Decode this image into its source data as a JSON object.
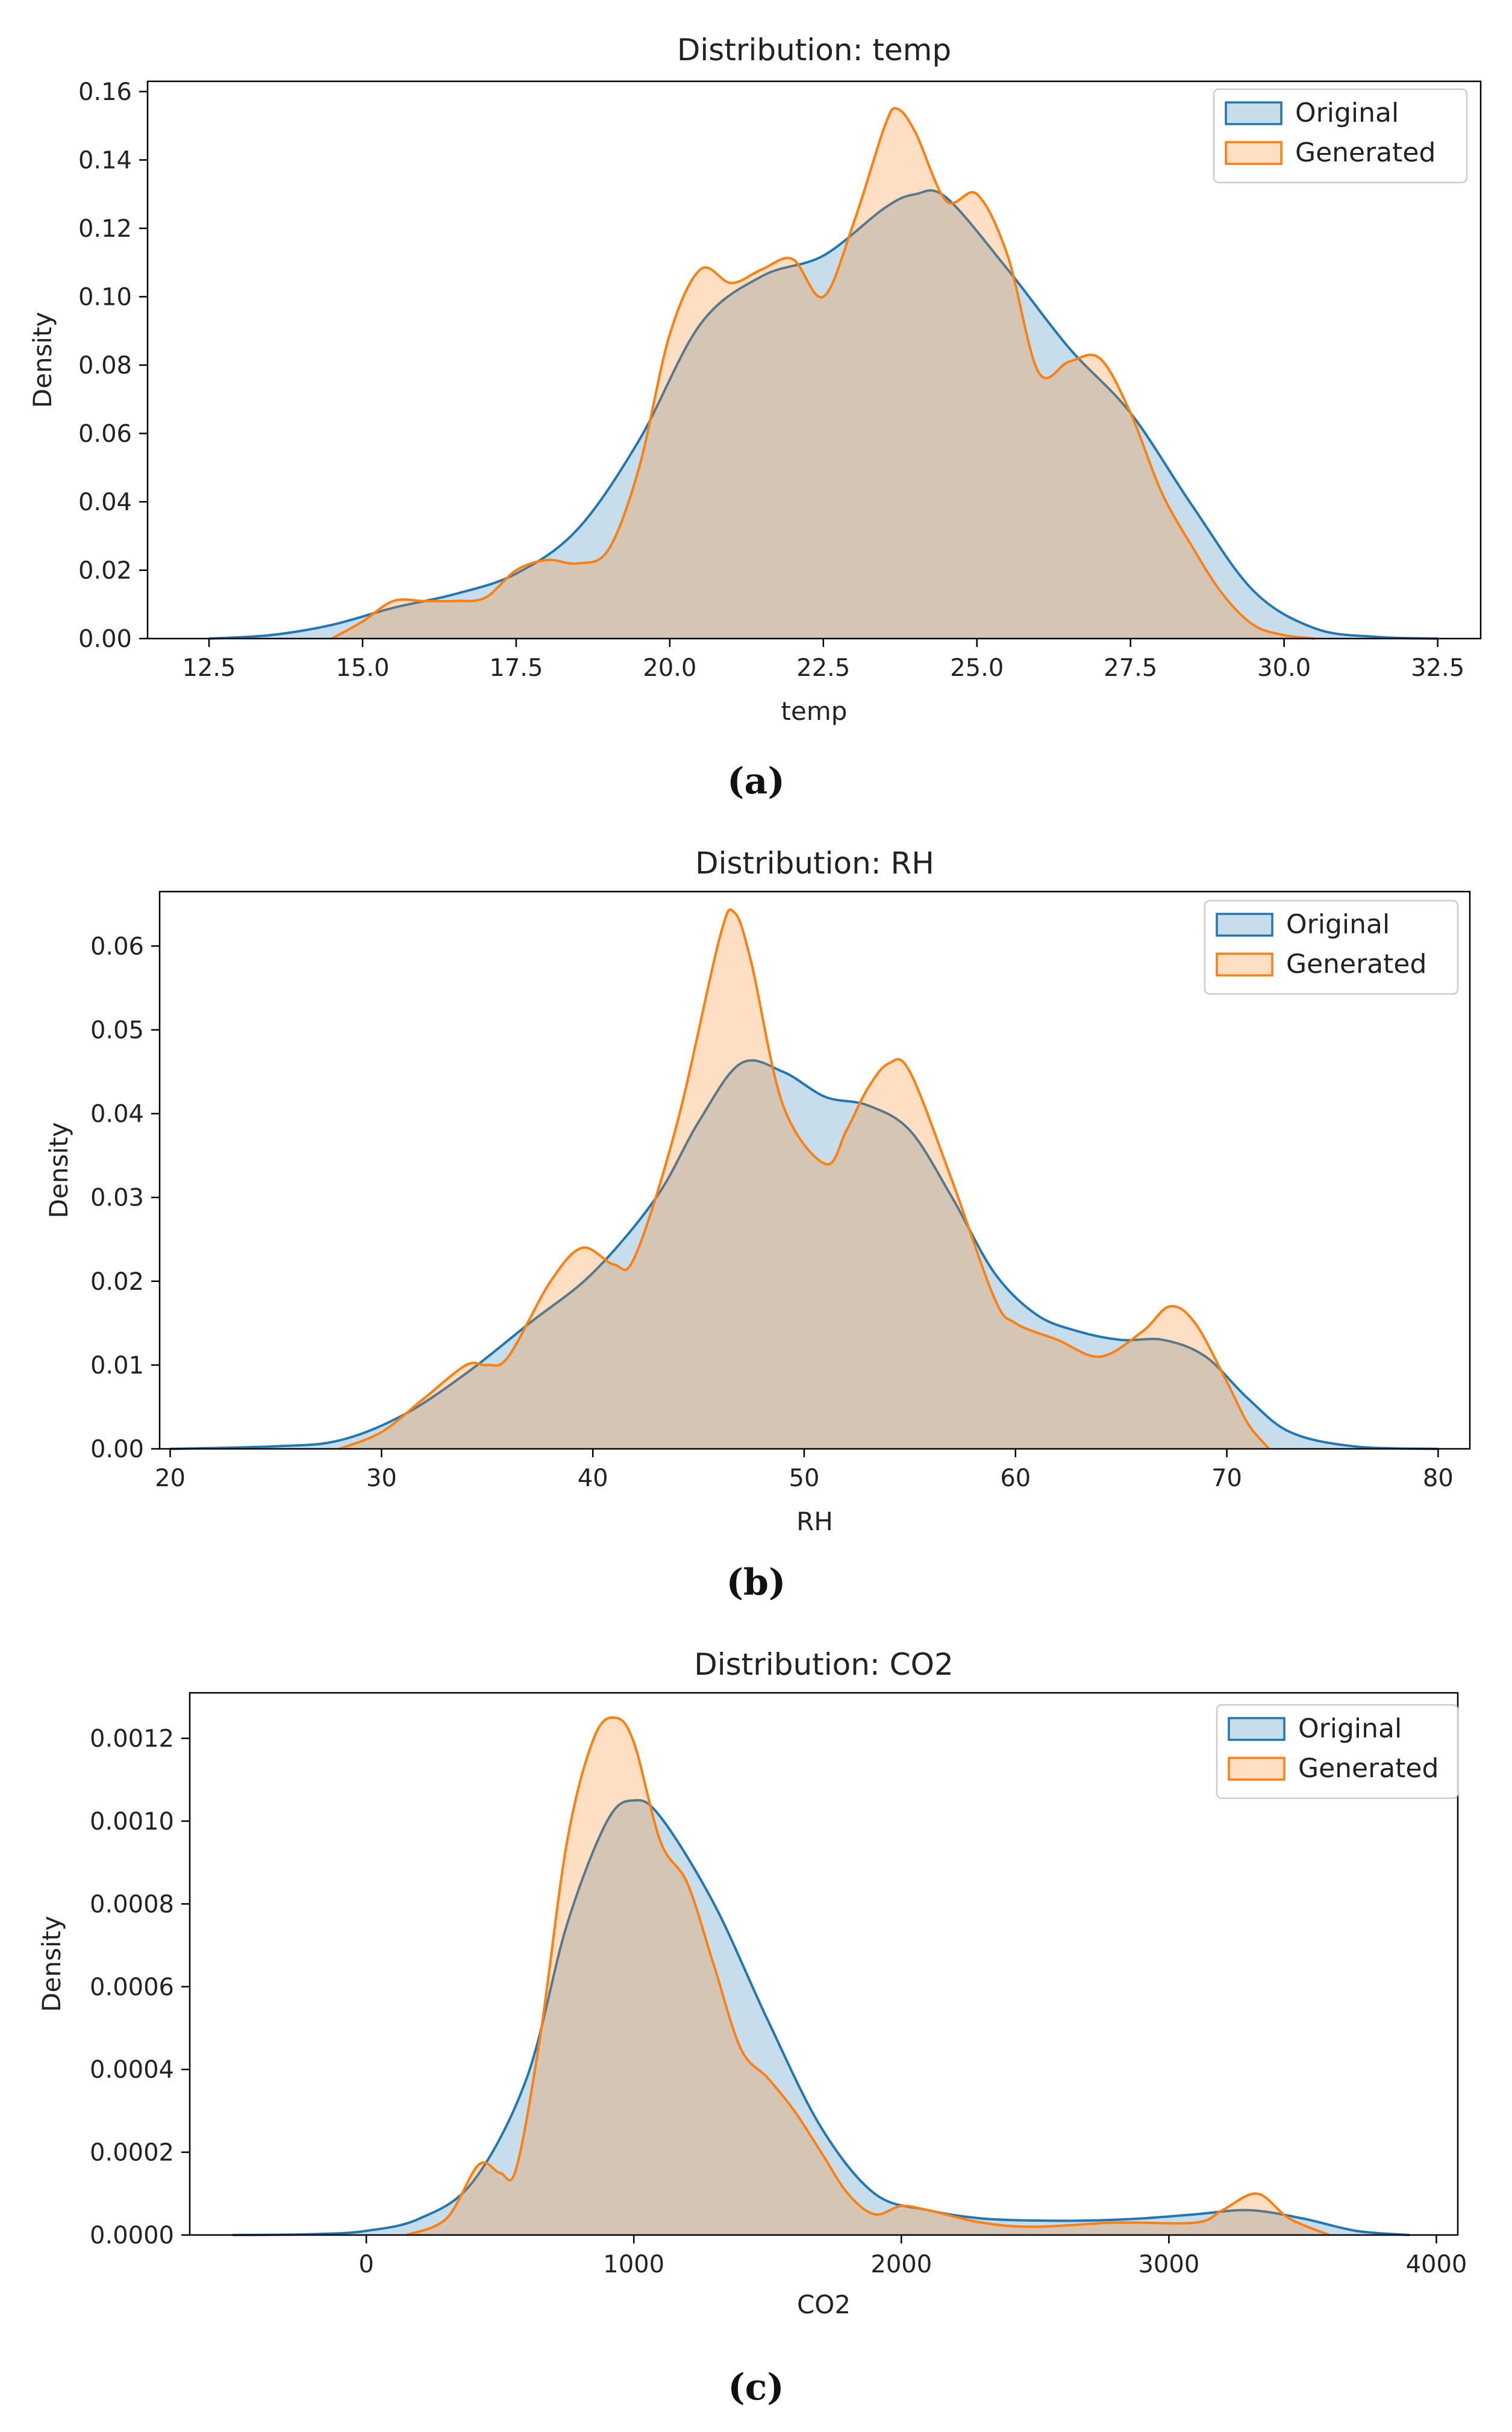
{
  "captions": [
    "(a)",
    "(b)",
    "(c)"
  ],
  "chart_data": [
    {
      "type": "area",
      "title": "Distribution: temp",
      "xlabel": "temp",
      "ylabel": "Density",
      "xlim": [
        11.5,
        33.2
      ],
      "ylim": [
        0,
        0.163
      ],
      "xticks": [
        12.5,
        15.0,
        17.5,
        20.0,
        22.5,
        25.0,
        27.5,
        30.0,
        32.5
      ],
      "xtick_labels": [
        "12.5",
        "15.0",
        "17.5",
        "20.0",
        "22.5",
        "25.0",
        "27.5",
        "30.0",
        "32.5"
      ],
      "yticks": [
        0,
        0.02,
        0.04,
        0.06,
        0.08,
        0.1,
        0.12,
        0.14,
        0.16
      ],
      "ytick_labels": [
        "0.00",
        "0.02",
        "0.04",
        "0.06",
        "0.08",
        "0.10",
        "0.12",
        "0.14",
        "0.16"
      ],
      "legend_position": "top-right",
      "series": [
        {
          "name": "Original",
          "color": "#1f77b4",
          "x": [
            12.5,
            13.5,
            14.5,
            15.5,
            16.5,
            17.5,
            18.5,
            19.5,
            20.5,
            21.5,
            22.5,
            23.5,
            24.0,
            24.5,
            25.5,
            26.5,
            27.5,
            28.5,
            29.5,
            30.5,
            31.5,
            32.5
          ],
          "y": [
            0.0,
            0.001,
            0.004,
            0.009,
            0.013,
            0.019,
            0.032,
            0.058,
            0.092,
            0.106,
            0.112,
            0.126,
            0.13,
            0.129,
            0.108,
            0.085,
            0.066,
            0.039,
            0.014,
            0.003,
            0.0005,
            0.0
          ]
        },
        {
          "name": "Generated",
          "color": "#ff7f0e",
          "x": [
            14.5,
            15.0,
            15.5,
            16.0,
            16.5,
            17.0,
            17.5,
            18.0,
            18.5,
            19.0,
            19.5,
            20.0,
            20.5,
            21.0,
            21.5,
            22.0,
            22.5,
            23.0,
            23.5,
            23.7,
            24.0,
            24.5,
            25.0,
            25.5,
            26.0,
            26.5,
            27.0,
            27.5,
            28.0,
            28.5,
            29.0,
            29.5,
            30.0,
            30.5
          ],
          "y": [
            0.0,
            0.005,
            0.011,
            0.011,
            0.011,
            0.012,
            0.02,
            0.023,
            0.022,
            0.026,
            0.05,
            0.089,
            0.108,
            0.104,
            0.108,
            0.111,
            0.1,
            0.122,
            0.15,
            0.155,
            0.148,
            0.128,
            0.13,
            0.112,
            0.078,
            0.081,
            0.082,
            0.066,
            0.043,
            0.027,
            0.013,
            0.004,
            0.001,
            0.0
          ]
        }
      ]
    },
    {
      "type": "area",
      "title": "Distribution: RH",
      "xlabel": "RH",
      "ylabel": "Density",
      "xlim": [
        19.5,
        81.5
      ],
      "ylim": [
        0,
        0.0665
      ],
      "xticks": [
        20,
        30,
        40,
        50,
        60,
        70,
        80
      ],
      "xtick_labels": [
        "20",
        "30",
        "40",
        "50",
        "60",
        "70",
        "80"
      ],
      "yticks": [
        0,
        0.01,
        0.02,
        0.03,
        0.04,
        0.05,
        0.06
      ],
      "ytick_labels": [
        "0.00",
        "0.01",
        "0.02",
        "0.03",
        "0.04",
        "0.05",
        "0.06"
      ],
      "legend_position": "top-right",
      "series": [
        {
          "name": "Original",
          "color": "#1f77b4",
          "x": [
            20,
            25,
            28,
            31,
            34,
            37,
            40,
            43,
            45,
            47,
            49,
            51,
            53,
            55,
            57,
            59,
            61,
            63,
            65,
            67,
            69,
            71,
            73,
            76,
            80
          ],
          "y": [
            0.0,
            0.0003,
            0.001,
            0.004,
            0.009,
            0.015,
            0.021,
            0.03,
            0.039,
            0.046,
            0.045,
            0.042,
            0.041,
            0.038,
            0.03,
            0.021,
            0.016,
            0.014,
            0.013,
            0.013,
            0.011,
            0.006,
            0.002,
            0.0003,
            0.0
          ]
        },
        {
          "name": "Generated",
          "color": "#ff7f0e",
          "x": [
            28,
            30,
            32,
            34,
            35,
            36,
            38,
            39.5,
            41,
            42,
            44,
            46,
            46.7,
            47.5,
            49,
            51,
            52,
            53,
            54,
            55,
            57,
            59,
            60,
            62,
            64,
            66,
            67.3,
            68.5,
            70,
            71,
            72
          ],
          "y": [
            0.0,
            0.002,
            0.006,
            0.01,
            0.01,
            0.011,
            0.02,
            0.024,
            0.022,
            0.023,
            0.039,
            0.061,
            0.064,
            0.058,
            0.041,
            0.034,
            0.038,
            0.043,
            0.046,
            0.045,
            0.032,
            0.018,
            0.015,
            0.013,
            0.011,
            0.014,
            0.017,
            0.015,
            0.008,
            0.003,
            0.0
          ]
        }
      ]
    },
    {
      "type": "area",
      "title": "Distribution: CO2",
      "xlabel": "CO2",
      "ylabel": "Density",
      "xlim": [
        -660,
        4080
      ],
      "ylim": [
        0,
        0.00131
      ],
      "xticks": [
        0,
        1000,
        2000,
        3000,
        4000
      ],
      "xtick_labels": [
        "0",
        "1000",
        "2000",
        "3000",
        "4000"
      ],
      "yticks": [
        0,
        0.0002,
        0.0004,
        0.0006,
        0.0008,
        0.001,
        0.0012
      ],
      "ytick_labels": [
        "0.0000",
        "0.0002",
        "0.0004",
        "0.0006",
        "0.0008",
        "0.0010",
        "0.0012"
      ],
      "legend_position": "top-right",
      "series": [
        {
          "name": "Original",
          "color": "#1f77b4",
          "x": [
            -500,
            -200,
            0,
            200,
            400,
            600,
            750,
            900,
            1000,
            1100,
            1300,
            1500,
            1700,
            1900,
            2100,
            2300,
            2500,
            2700,
            2900,
            3100,
            3300,
            3500,
            3700,
            3900
          ],
          "y": [
            0.0,
            2e-06,
            1e-05,
            4e-05,
            0.00013,
            0.00038,
            0.00075,
            0.001,
            0.00105,
            0.00101,
            0.0008,
            0.00052,
            0.00026,
            0.0001,
            6e-05,
            4e-05,
            3.5e-05,
            3.5e-05,
            4e-05,
            5e-05,
            6e-05,
            4e-05,
            1e-05,
            0.0
          ]
        },
        {
          "name": "Generated",
          "color": "#ff7f0e",
          "x": [
            150,
            300,
            420,
            500,
            560,
            650,
            750,
            850,
            930,
            1000,
            1100,
            1200,
            1300,
            1400,
            1500,
            1600,
            1700,
            1800,
            1900,
            2000,
            2100,
            2300,
            2500,
            2800,
            3100,
            3200,
            3330,
            3450,
            3600
          ],
          "y": [
            0.0,
            4e-05,
            0.00017,
            0.00015,
            0.00016,
            0.00048,
            0.00095,
            0.0012,
            0.00125,
            0.00119,
            0.00095,
            0.00085,
            0.00065,
            0.00045,
            0.00038,
            0.0003,
            0.0002,
            0.0001,
            5e-05,
            7e-05,
            6e-05,
            3e-05,
            2e-05,
            3e-05,
            3e-05,
            6e-05,
            0.0001,
            4e-05,
            0.0
          ]
        }
      ]
    }
  ]
}
